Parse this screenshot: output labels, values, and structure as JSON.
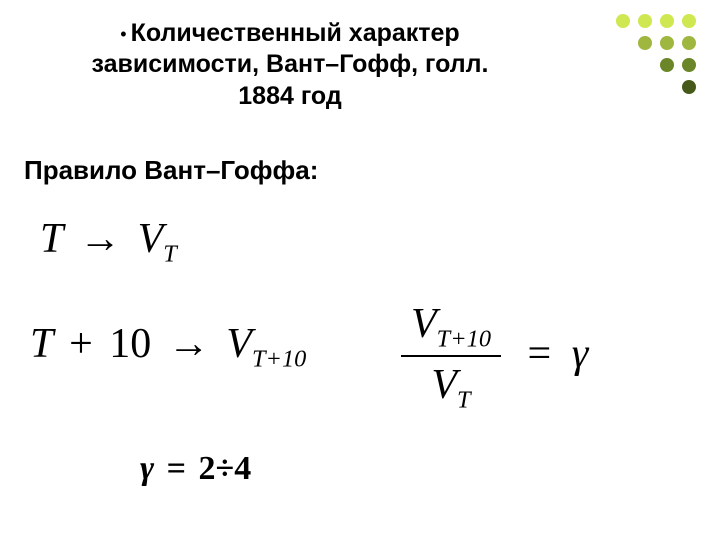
{
  "title": {
    "bullet": "•",
    "line1": "Количественный характер",
    "line2": "зависимости, Вант–Гофф, голл.",
    "line3": "1884 год"
  },
  "subtitle": "Правило Вант–Гоффа:",
  "equations": {
    "T": "T",
    "arrow": "→",
    "V": "V",
    "sub_T": "T",
    "plus10": "10",
    "sub_T10": "T+10",
    "eq": "=",
    "gamma": "γ",
    "plus": "+"
  },
  "gamma_range": {
    "symbol": "γ",
    "equals": "=",
    "low": "2",
    "sep": "÷",
    "high": "4"
  },
  "dot_colors": [
    "#cfe750",
    "#cfe750",
    "#cfe750",
    "#cfe750",
    "#ffffff",
    "#9fb63f",
    "#9fb63f",
    "#9fb63f",
    "#ffffff",
    "#ffffff",
    "#6b8628",
    "#6b8628",
    "#ffffff",
    "#ffffff",
    "#ffffff",
    "#455a1a"
  ]
}
